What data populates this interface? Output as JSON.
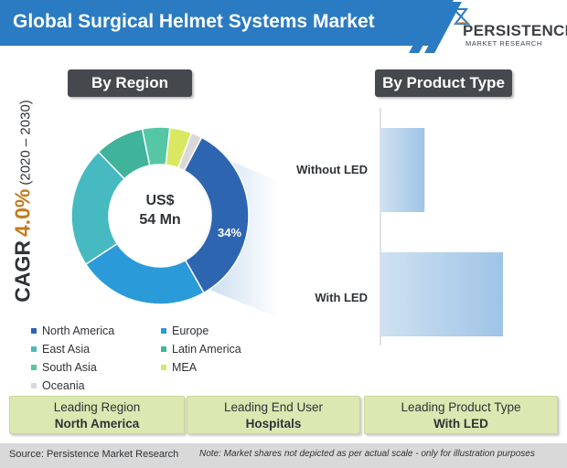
{
  "header": {
    "title": "Global Surgical Helmet Systems Market"
  },
  "logo": {
    "name": "PERSISTENCE",
    "tagline": "MARKET RESEARCH"
  },
  "cagr": {
    "label": "CAGR",
    "value": "4.0%",
    "period": "(2020 – 2030)"
  },
  "colors": {
    "title_bar": "#2b7bc2",
    "section_header": "#45484d",
    "box": "#dbe8b2",
    "cagr_value": "#c27c1f"
  },
  "chart_data": [
    {
      "type": "pie",
      "title": "By Region",
      "center_label": {
        "currency": "US$",
        "amount": "54 Mn"
      },
      "slices": [
        {
          "name": "North America",
          "value": 34,
          "color": "#2d65b0",
          "label": "34%"
        },
        {
          "name": "Europe",
          "value": 24,
          "color": "#2a9ad8",
          "label": ""
        },
        {
          "name": "East Asia",
          "value": 22,
          "color": "#47b9c0",
          "label": ""
        },
        {
          "name": "Latin America",
          "value": 9,
          "color": "#3fb49a",
          "label": ""
        },
        {
          "name": "South Asia",
          "value": 5,
          "color": "#55c7a4",
          "label": ""
        },
        {
          "name": "MEA",
          "value": 4,
          "color": "#d9e860",
          "label": ""
        },
        {
          "name": "Oceania",
          "value": 2,
          "color": "#d9d9d9",
          "label": ""
        }
      ]
    },
    {
      "type": "bar",
      "title": "By Product Type",
      "orientation": "horizontal",
      "categories": [
        "Without LED",
        "With LED"
      ],
      "values": [
        36,
        100
      ],
      "note": "relative shares; no axis values printed"
    }
  ],
  "legend": {
    "items": [
      {
        "name": "North America",
        "color": "#2d65b0"
      },
      {
        "name": "Europe",
        "color": "#2a9ad8"
      },
      {
        "name": "East Asia",
        "color": "#47b9c0"
      },
      {
        "name": "Latin America",
        "color": "#3fb49a"
      },
      {
        "name": "South Asia",
        "color": "#55c7a4"
      },
      {
        "name": "MEA",
        "color": "#d9e860"
      },
      {
        "name": "Oceania",
        "color": "#d9d9d9"
      }
    ]
  },
  "boxes": [
    {
      "label": "Leading Region",
      "value": "North America"
    },
    {
      "label": "Leading End User",
      "value": "Hospitals"
    },
    {
      "label": "Leading Product Type",
      "value": "With LED"
    }
  ],
  "footer": {
    "source": "Source: Persistence Market Research",
    "note": "Note: Market shares not depicted as per actual scale - only for illustration purposes"
  }
}
